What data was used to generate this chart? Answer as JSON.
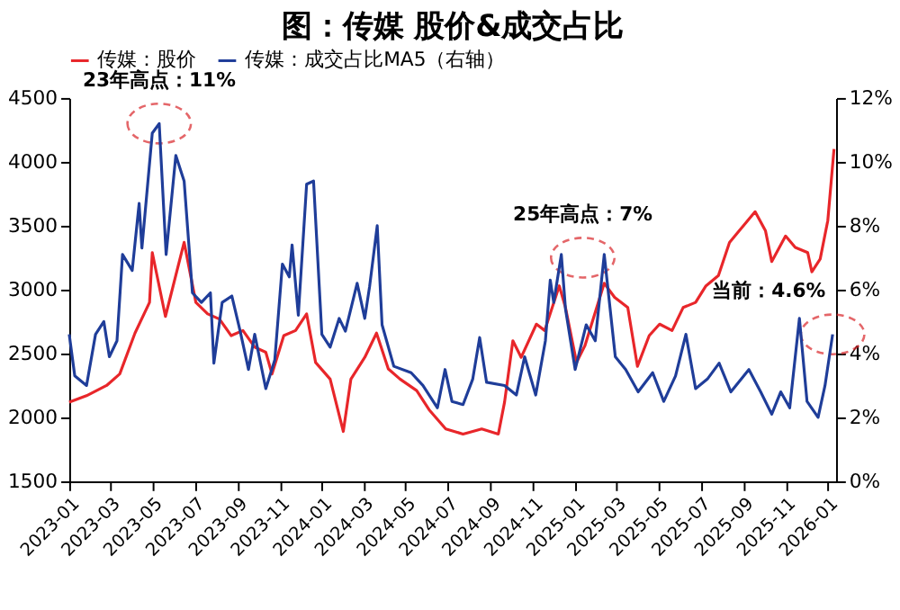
{
  "chart_data": {
    "type": "line",
    "title": "图：传媒 股价&成交占比",
    "legend": "top",
    "grid": false,
    "xlim": [
      "2023-01-01",
      "2026-01-13"
    ],
    "xticks": [
      "2023-01",
      "2023-03",
      "2023-05",
      "2023-07",
      "2023-09",
      "2023-11",
      "2024-01",
      "2024-03",
      "2024-05",
      "2024-07",
      "2024-09",
      "2024-11",
      "2025-01",
      "2025-03",
      "2025-05",
      "2025-07",
      "2025-09",
      "2025-11",
      "2026-01"
    ],
    "ylim": [
      1500,
      4500
    ],
    "yticks": [
      1500,
      2000,
      2500,
      3000,
      3500,
      4000,
      4500
    ],
    "y2lim": [
      0,
      12
    ],
    "y2ticks": [
      {
        "value": 0,
        "label": "0%"
      },
      {
        "value": 2,
        "label": "2%"
      },
      {
        "value": 4,
        "label": "4%"
      },
      {
        "value": 6,
        "label": "6%"
      },
      {
        "value": 8,
        "label": "8%"
      },
      {
        "value": 10,
        "label": "10%"
      },
      {
        "value": 12,
        "label": "12%"
      }
    ],
    "series": [
      {
        "name": "传媒：股价",
        "color": "#e8262a",
        "x": [
          "2023-01-01",
          "2023-01-26",
          "2023-02-24",
          "2023-03-15",
          "2023-04-06",
          "2023-04-27",
          "2023-05-01",
          "2023-05-20",
          "2023-06-16",
          "2023-07-03",
          "2023-07-20",
          "2023-08-06",
          "2023-08-23",
          "2023-09-09",
          "2023-09-26",
          "2023-10-12",
          "2023-10-21",
          "2023-11-07",
          "2023-11-24",
          "2023-12-10",
          "2023-12-23",
          "2024-01-13",
          "2024-02-01",
          "2024-02-12",
          "2024-03-03",
          "2024-03-20",
          "2024-04-06",
          "2024-04-23",
          "2024-05-17",
          "2024-06-04",
          "2024-06-28",
          "2024-07-23",
          "2024-08-19",
          "2024-09-12",
          "2024-09-21",
          "2024-10-03",
          "2024-10-15",
          "2024-11-06",
          "2024-11-18",
          "2024-12-09",
          "2024-12-18",
          "2025-01-03",
          "2025-01-15",
          "2025-02-12",
          "2025-02-27",
          "2025-03-18",
          "2025-04-01",
          "2025-04-18",
          "2025-05-03",
          "2025-05-21",
          "2025-06-06",
          "2025-06-24",
          "2025-07-09",
          "2025-07-27",
          "2025-08-12",
          "2025-09-01",
          "2025-09-18",
          "2025-10-03",
          "2025-10-12",
          "2025-11-01",
          "2025-11-15",
          "2025-12-03",
          "2025-12-09",
          "2025-12-21",
          "2026-01-01",
          "2026-01-10"
        ],
        "values": [
          2120,
          2170,
          2250,
          2340,
          2660,
          2900,
          3290,
          2790,
          3370,
          2900,
          2810,
          2770,
          2640,
          2680,
          2550,
          2510,
          2340,
          2640,
          2680,
          2810,
          2430,
          2300,
          1890,
          2300,
          2470,
          2660,
          2380,
          2300,
          2210,
          2060,
          1910,
          1870,
          1910,
          1870,
          2120,
          2600,
          2470,
          2730,
          2680,
          3030,
          2860,
          2430,
          2560,
          3050,
          2940,
          2860,
          2400,
          2640,
          2730,
          2680,
          2860,
          2900,
          3030,
          3110,
          3370,
          3500,
          3610,
          3460,
          3220,
          3420,
          3330,
          3290,
          3140,
          3240,
          3540,
          4100
        ]
      },
      {
        "name": "传媒：成交占比MA5（右轴）",
        "color": "#1f3d99",
        "axis": "y2",
        "x": [
          "2023-01-01",
          "2023-01-09",
          "2023-01-26",
          "2023-02-08",
          "2023-02-20",
          "2023-02-28",
          "2023-03-11",
          "2023-03-19",
          "2023-04-02",
          "2023-04-12",
          "2023-04-16",
          "2023-05-01",
          "2023-05-11",
          "2023-05-21",
          "2023-06-04",
          "2023-06-16",
          "2023-06-28",
          "2023-07-11",
          "2023-07-24",
          "2023-07-29",
          "2023-08-10",
          "2023-08-24",
          "2023-09-05",
          "2023-09-17",
          "2023-09-26",
          "2023-10-12",
          "2023-10-25",
          "2023-11-05",
          "2023-11-15",
          "2023-11-19",
          "2023-11-28",
          "2023-12-10",
          "2023-12-20",
          "2024-01-01",
          "2024-01-13",
          "2024-01-26",
          "2024-02-04",
          "2024-02-21",
          "2024-03-03",
          "2024-03-10",
          "2024-03-21",
          "2024-03-28",
          "2024-04-14",
          "2024-05-09",
          "2024-05-26",
          "2024-06-16",
          "2024-06-27",
          "2024-07-07",
          "2024-07-23",
          "2024-08-06",
          "2024-08-16",
          "2024-08-26",
          "2024-09-21",
          "2024-10-08",
          "2024-10-20",
          "2024-11-05",
          "2024-11-19",
          "2024-11-26",
          "2024-12-01",
          "2024-12-12",
          "2024-12-18",
          "2025-01-01",
          "2025-01-17",
          "2025-01-30",
          "2025-02-12",
          "2025-02-28",
          "2025-03-15",
          "2025-04-02",
          "2025-04-23",
          "2025-05-09",
          "2025-05-26",
          "2025-06-10",
          "2025-06-24",
          "2025-07-11",
          "2025-07-28",
          "2025-08-14",
          "2025-09-09",
          "2025-09-26",
          "2025-10-12",
          "2025-10-25",
          "2025-11-07",
          "2025-11-21",
          "2025-12-02",
          "2025-12-18",
          "2025-12-28",
          "2026-01-08"
        ],
        "values": [
          4.6,
          3.3,
          3.0,
          4.6,
          5.0,
          3.9,
          4.4,
          7.1,
          6.6,
          8.7,
          7.3,
          10.9,
          11.2,
          7.1,
          10.2,
          9.4,
          5.9,
          5.6,
          5.9,
          3.7,
          5.6,
          5.8,
          4.7,
          3.5,
          4.6,
          2.9,
          3.8,
          6.8,
          6.4,
          7.4,
          5.2,
          9.3,
          9.4,
          4.6,
          4.2,
          5.1,
          4.7,
          6.2,
          5.1,
          6.1,
          8.0,
          4.9,
          3.6,
          3.4,
          3.0,
          2.3,
          3.5,
          2.5,
          2.4,
          3.2,
          4.5,
          3.1,
          3.0,
          2.7,
          3.9,
          2.7,
          4.4,
          6.3,
          5.6,
          7.1,
          5.4,
          3.5,
          4.9,
          4.4,
          7.1,
          3.9,
          3.5,
          2.8,
          3.4,
          2.5,
          3.3,
          4.6,
          2.9,
          3.2,
          3.7,
          2.8,
          3.5,
          2.8,
          2.1,
          2.8,
          2.3,
          5.1,
          2.5,
          2.0,
          3.0,
          4.6
        ]
      }
    ],
    "annotations": [
      {
        "text": "23年高点：11%",
        "x": "2023-05-11",
        "y": 4300
      },
      {
        "text": "25年高点：7%",
        "x": "2025-01-12",
        "y": 3250
      },
      {
        "text": "当前：4.6%",
        "x": "2026-01-08",
        "y": 2650
      }
    ]
  }
}
